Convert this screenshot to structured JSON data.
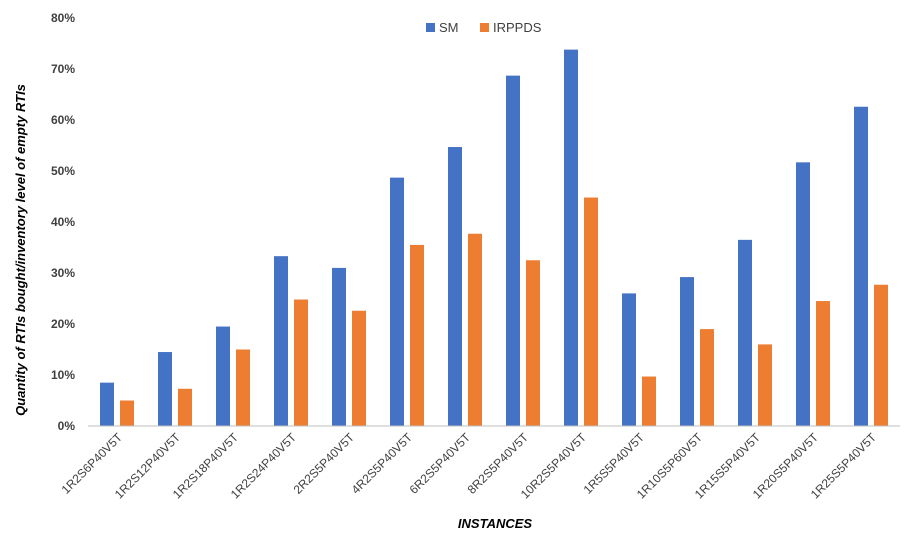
{
  "chart_data": {
    "type": "bar",
    "xlabel": "INSTANCES",
    "ylabel": "Quantity of RTIs bought/inventory level of empty RTIs",
    "ylim": [
      0,
      80
    ],
    "ytick_step": 10,
    "ytick_suffix": "%",
    "grid": false,
    "legend_position": "top-center",
    "categories": [
      "1R2S6P40V5T",
      "1R2S12P40V5T",
      "1R2S18P40V5T",
      "1R2S24P40V5T",
      "2R2S5P40V5T",
      "4R2S5P40V5T",
      "6R2S5P40V5T",
      "8R2S5P40V5T",
      "10R2S5P40V5T",
      "1R5S5P40V5T",
      "1R10S5P60V5T",
      "1R15S5P40V5T",
      "1R20S5P40V5T",
      "1R25S5P40V5T"
    ],
    "series": [
      {
        "name": "SM",
        "color": "#4472c4",
        "values": [
          8.5,
          14.5,
          19.5,
          33.3,
          31,
          48.7,
          54.7,
          68.7,
          73.8,
          26,
          29.2,
          36.5,
          51.7,
          62.6
        ]
      },
      {
        "name": "IRPPDS",
        "color": "#ed7d31",
        "values": [
          5,
          7.3,
          15,
          24.8,
          22.6,
          35.5,
          37.7,
          32.5,
          44.8,
          9.7,
          19,
          16,
          24.5,
          27.7
        ]
      }
    ]
  }
}
